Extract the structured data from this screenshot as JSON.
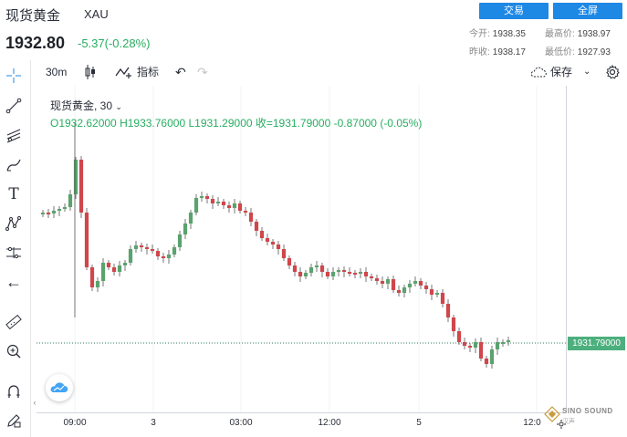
{
  "header": {
    "name": "现货黄金",
    "symbol": "XAU",
    "price": "1932.80",
    "change": "-5.37(-0.28%)",
    "buttons": {
      "trade": "交易",
      "fullscreen": "全屏"
    },
    "stats": {
      "open_label": "今开:",
      "open": "1938.35",
      "high_label": "最高价:",
      "high": "1938.97",
      "prev_label": "昨收:",
      "prev": "1938.17",
      "low_label": "最低价:",
      "low": "1927.93"
    }
  },
  "toolbar": {
    "interval": "30m",
    "indicators_label": "指标",
    "save_label": "保存"
  },
  "legend": {
    "title": "现货黄金, 30",
    "ohlc": "O1932.62000  H1933.76000  L1931.29000  收=1931.79000  -0.87000 (-0.05%)"
  },
  "price_scale": {
    "last_price": "1931.79000"
  },
  "time_scale": {
    "ticks": [
      "09:00",
      "3",
      "03:00",
      "12:00",
      "5",
      "12:0"
    ]
  },
  "watermark": {
    "brand": "SINO SOUND",
    "sub": "汉声"
  },
  "colors": {
    "up": "#26a69a",
    "up_candle": "#5aa36e",
    "down": "#d0464b",
    "accent": "#1e88e5",
    "last_price_tag": "#4caf7d",
    "price_line": "#2e7d5b"
  },
  "icons": {
    "crosshair": "crosshair-icon",
    "trend_line": "trend-line-icon",
    "fib": "fib-tool-icon",
    "brush": "brush-icon",
    "text": "text-tool-icon",
    "pattern": "pattern-icon",
    "prediction": "prediction-icon",
    "back": "arrow-left-icon",
    "ruler": "ruler-icon",
    "zoom": "zoom-in-icon",
    "magnet": "magnet-icon",
    "lock_pencil": "pencil-lock-icon",
    "candle": "candle-type-icon",
    "indicator": "indicator-icon",
    "undo": "undo-icon",
    "redo": "redo-icon",
    "cloud": "cloud-icon",
    "gear": "gear-icon",
    "chevron": "chevron-down-icon"
  }
}
